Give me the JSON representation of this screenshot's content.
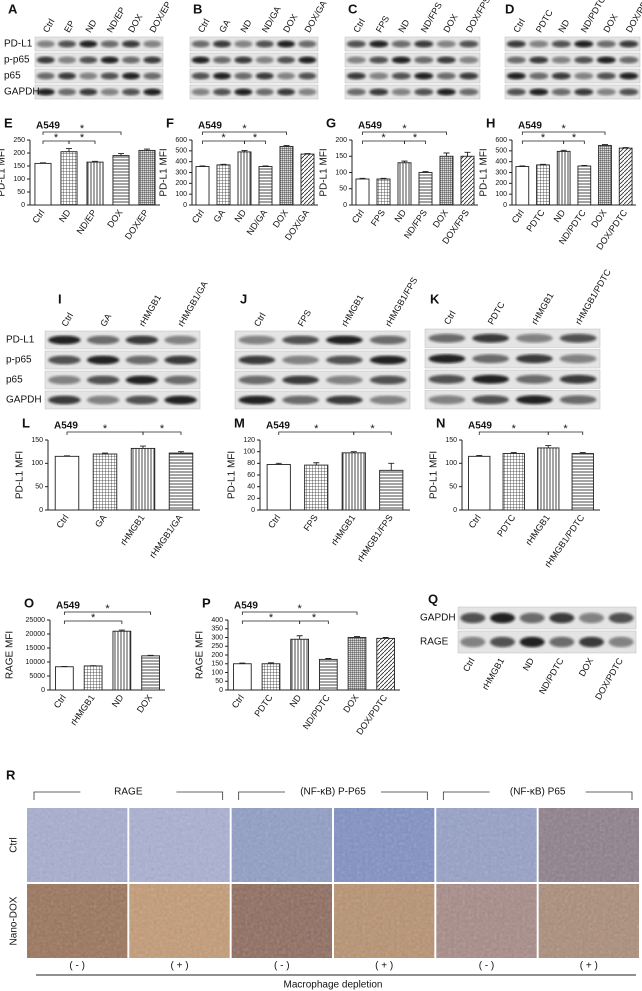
{
  "blots": [
    {
      "panel": "A",
      "lanes": [
        "Ctrl",
        "EP",
        "ND",
        "ND/EP",
        "DOX",
        "DOX/EP"
      ],
      "rows": [
        "PD-L1",
        "p-p65",
        "p65",
        "GAPDH"
      ]
    },
    {
      "panel": "B",
      "lanes": [
        "Ctrl",
        "GA",
        "ND",
        "ND/GA",
        "DOX",
        "DOX/GA"
      ]
    },
    {
      "panel": "C",
      "lanes": [
        "Ctrl",
        "FPS",
        "ND",
        "ND/FPS",
        "DOX",
        "DOX/FPS"
      ]
    },
    {
      "panel": "D",
      "lanes": [
        "Ctrl",
        "PDTC",
        "ND",
        "ND/PDTC",
        "DOX",
        "DOX/PDTC"
      ]
    },
    {
      "panel": "I",
      "lanes": [
        "Ctrl",
        "GA",
        "rHMGB1",
        "rHMGB1/GA"
      ],
      "rows": [
        "PD-L1",
        "p-p65",
        "p65",
        "GAPDH"
      ]
    },
    {
      "panel": "J",
      "lanes": [
        "Ctrl",
        "FPS",
        "rHMGB1",
        "rHMGB1/FPS"
      ]
    },
    {
      "panel": "K",
      "lanes": [
        "Ctrl",
        "PDTC",
        "rHMGB1",
        "rHMGB1/PDTC"
      ]
    },
    {
      "panel": "Q",
      "lanes": [
        "Ctrl",
        "rHMGB1",
        "ND",
        "ND/PDTC",
        "DOX",
        "DOX/PDTC"
      ],
      "rows": [
        "GAPDH",
        "RAGE"
      ]
    }
  ],
  "chart_data": [
    {
      "type": "bar",
      "panel": "E",
      "subtitle": "A549",
      "ylabel": "PD-L1 MFI",
      "categories": [
        "Ctrl",
        "ND",
        "ND/EP",
        "DOX",
        "DOX/EP"
      ],
      "values": [
        160,
        205,
        165,
        190,
        210
      ],
      "errors": [
        2,
        12,
        3,
        8,
        5
      ],
      "ylim": [
        0,
        250
      ],
      "yticks": [
        0,
        50,
        100,
        150,
        200,
        250
      ],
      "annotations": [
        {
          "text": "*",
          "between": [
            "Ctrl",
            "DOX"
          ]
        },
        {
          "text": "*",
          "between": [
            "Ctrl",
            "ND"
          ]
        },
        {
          "text": "*",
          "between": [
            "ND",
            "ND/EP"
          ]
        }
      ]
    },
    {
      "type": "bar",
      "panel": "F",
      "subtitle": "A549",
      "ylabel": "PD-L1 MFI",
      "categories": [
        "Ctrl",
        "GA",
        "ND",
        "ND/GA",
        "DOX",
        "DOX/GA"
      ],
      "values": [
        355,
        370,
        490,
        355,
        540,
        470
      ],
      "errors": [
        5,
        5,
        12,
        5,
        8,
        5
      ],
      "ylim": [
        0,
        600
      ],
      "yticks": [
        0,
        100,
        200,
        300,
        400,
        500,
        600
      ],
      "annotations": [
        {
          "text": "*",
          "between": [
            "Ctrl",
            "DOX"
          ]
        },
        {
          "text": "*",
          "between": [
            "Ctrl",
            "ND"
          ]
        },
        {
          "text": "*",
          "between": [
            "ND",
            "ND/GA"
          ]
        }
      ]
    },
    {
      "type": "bar",
      "panel": "G",
      "subtitle": "A549",
      "ylabel": "PD-L1 MFI",
      "categories": [
        "Ctrl",
        "FPS",
        "ND",
        "ND/FPS",
        "DOX",
        "DOX/FPS"
      ],
      "values": [
        80,
        80,
        130,
        100,
        150,
        150
      ],
      "errors": [
        2,
        2,
        5,
        3,
        10,
        12
      ],
      "ylim": [
        0,
        200
      ],
      "yticks": [
        0,
        50,
        100,
        150,
        200
      ],
      "annotations": [
        {
          "text": "*",
          "between": [
            "Ctrl",
            "DOX"
          ]
        },
        {
          "text": "*",
          "between": [
            "Ctrl",
            "ND"
          ]
        },
        {
          "text": "*",
          "between": [
            "ND",
            "ND/FPS"
          ]
        }
      ]
    },
    {
      "type": "bar",
      "panel": "H",
      "subtitle": "A549",
      "ylabel": "PD-L1 MFI",
      "categories": [
        "Ctrl",
        "PDTC",
        "ND",
        "ND/PDTC",
        "DOX",
        "DOX/PDTC"
      ],
      "values": [
        355,
        370,
        495,
        360,
        550,
        525
      ],
      "errors": [
        5,
        5,
        10,
        5,
        8,
        5
      ],
      "ylim": [
        0,
        600
      ],
      "yticks": [
        0,
        100,
        200,
        300,
        400,
        500,
        600
      ],
      "annotations": [
        {
          "text": "*",
          "between": [
            "Ctrl",
            "DOX"
          ]
        },
        {
          "text": "*",
          "between": [
            "Ctrl",
            "ND"
          ]
        },
        {
          "text": "*",
          "between": [
            "ND",
            "ND/PDTC"
          ]
        }
      ]
    },
    {
      "type": "bar",
      "panel": "L",
      "subtitle": "A549",
      "ylabel": "PD-L1 MFI",
      "categories": [
        "Ctrl",
        "GA",
        "rHMGB1",
        "rHMGB1/GA"
      ],
      "values": [
        115,
        120,
        132,
        122
      ],
      "errors": [
        1,
        2,
        5,
        3
      ],
      "ylim": [
        0,
        150
      ],
      "yticks": [
        0,
        50,
        100,
        150
      ],
      "annotations": [
        {
          "text": "*",
          "between": [
            "Ctrl",
            "rHMGB1"
          ]
        },
        {
          "text": "*",
          "between": [
            "rHMGB1",
            "rHMGB1/GA"
          ]
        }
      ]
    },
    {
      "type": "bar",
      "panel": "M",
      "subtitle": "A549",
      "ylabel": "PD-L1 MFI",
      "categories": [
        "Ctrl",
        "FPS",
        "rHMGB1",
        "rHMGB1/FPS"
      ],
      "values": [
        78,
        77,
        98,
        68
      ],
      "errors": [
        2,
        4,
        2,
        12
      ],
      "ylim": [
        0,
        120
      ],
      "yticks": [
        0,
        20,
        40,
        60,
        80,
        100,
        120
      ],
      "annotations": [
        {
          "text": "*",
          "between": [
            "Ctrl",
            "rHMGB1"
          ]
        },
        {
          "text": "*",
          "between": [
            "rHMGB1",
            "rHMGB1/FPS"
          ]
        }
      ]
    },
    {
      "type": "bar",
      "panel": "N",
      "subtitle": "A549",
      "ylabel": "PD-L1 MFI",
      "categories": [
        "Ctrl",
        "PDTC",
        "rHMGB1",
        "rHMGB1/PDTC"
      ],
      "values": [
        115,
        121,
        133,
        121
      ],
      "errors": [
        2,
        2,
        5,
        2
      ],
      "ylim": [
        0,
        150
      ],
      "yticks": [
        0,
        50,
        100,
        150
      ],
      "annotations": [
        {
          "text": "*",
          "between": [
            "Ctrl",
            "rHMGB1"
          ]
        },
        {
          "text": "*",
          "between": [
            "rHMGB1",
            "rHMGB1/PDTC"
          ]
        }
      ]
    },
    {
      "type": "bar",
      "panel": "O",
      "subtitle": "A549",
      "ylabel": "RAGE MFI",
      "categories": [
        "Ctrl",
        "rHMGB1",
        "ND",
        "DOX"
      ],
      "values": [
        8300,
        8600,
        21000,
        12200
      ],
      "errors": [
        100,
        100,
        400,
        200
      ],
      "ylim": [
        0,
        25000
      ],
      "yticks": [
        0,
        5000,
        10000,
        15000,
        20000,
        25000
      ],
      "annotations": [
        {
          "text": "*",
          "between": [
            "Ctrl",
            "DOX"
          ]
        },
        {
          "text": "*",
          "between": [
            "Ctrl",
            "ND"
          ]
        }
      ]
    },
    {
      "type": "bar",
      "panel": "P",
      "subtitle": "A549",
      "ylabel": "RAGE MFI",
      "categories": [
        "Ctrl",
        "PDTC",
        "ND",
        "ND/PDTC",
        "DOX",
        "DOX/PDTC"
      ],
      "values": [
        150,
        150,
        290,
        175,
        300,
        295
      ],
      "errors": [
        4,
        5,
        20,
        5,
        5,
        5
      ],
      "ylim": [
        0,
        400
      ],
      "yticks": [
        0,
        50,
        100,
        150,
        200,
        250,
        300,
        350,
        400
      ],
      "annotations": [
        {
          "text": "*",
          "between": [
            "Ctrl",
            "DOX"
          ]
        },
        {
          "text": "*",
          "between": [
            "Ctrl",
            "ND"
          ]
        },
        {
          "text": "*",
          "between": [
            "ND",
            "ND/PDTC"
          ]
        }
      ]
    }
  ],
  "ihc": {
    "panel": "R",
    "groups": [
      "RAGE",
      "(NF-κB) P-P65",
      "(NF-κB) P65"
    ],
    "row_labels": [
      "Ctrl",
      "Nano-DOX"
    ],
    "conditions": [
      "( - )",
      "( + )",
      "( - )",
      "( + )",
      "( - )",
      "( + )"
    ],
    "footer": "Macrophage depletion"
  }
}
